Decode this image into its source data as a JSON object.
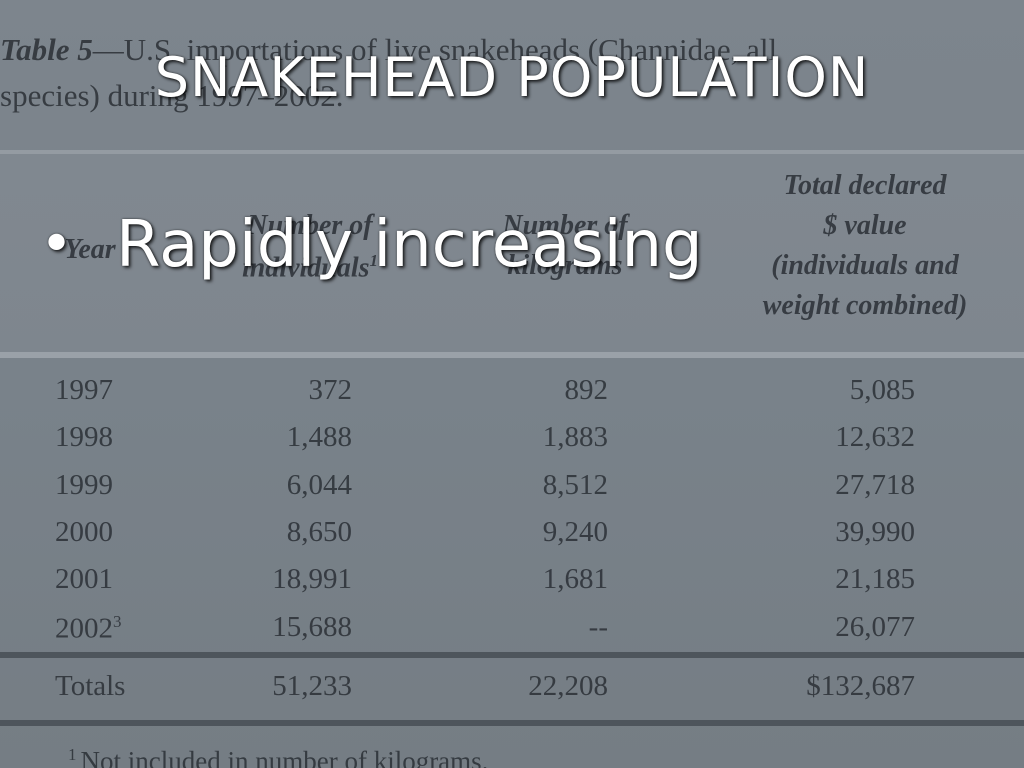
{
  "slide": {
    "title": "SNAKEHEAD POPULATION",
    "bullets": [
      "Rapidly increasing"
    ]
  },
  "table": {
    "caption": [
      "Table 5",
      "—U.S. importations of live snakeheads (Channidae, all",
      "species) during 1997–2002."
    ],
    "headers": {
      "year": [
        "Year"
      ],
      "individuals": [
        "Number of",
        "individuals"
      ],
      "individuals_note": "1",
      "kilograms": [
        "Number of",
        "kilograms"
      ],
      "value": [
        "Total declared",
        "$ value",
        "(individuals and",
        "weight combined)"
      ]
    },
    "rows": [
      {
        "year": "1997",
        "individuals": "372",
        "kilograms": "892",
        "value": "5,085"
      },
      {
        "year": "1998",
        "individuals": "1,488",
        "kilograms": "1,883",
        "value": "12,632"
      },
      {
        "year": "1999",
        "individuals": "6,044",
        "kilograms": "8,512",
        "value": "27,718"
      },
      {
        "year": "2000",
        "individuals": "8,650",
        "kilograms": "9,240",
        "value": "39,990"
      },
      {
        "year": "2001",
        "individuals": "18,991",
        "kilograms": "1,681",
        "value": "21,185"
      },
      {
        "year": "2002",
        "year_note": "3",
        "individuals": "15,688",
        "kilograms": "--",
        "value": "26,077"
      }
    ],
    "totals": {
      "year": "Totals",
      "individuals": "51,233",
      "kilograms": "22,208",
      "value": "$132,687"
    },
    "footnote": {
      "note": "1",
      "text": "Not included in number of kilograms."
    }
  }
}
